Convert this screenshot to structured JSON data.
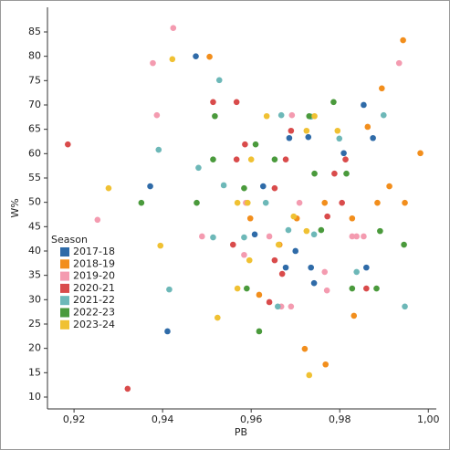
{
  "chart_data": {
    "type": "scatter",
    "x_label": "PB",
    "y_label": "W%",
    "legend_title": "Season",
    "legend_position": "lower left",
    "xlim": [
      0.914,
      1.0018
    ],
    "ylim": [
      7.56,
      90.06
    ],
    "xticks": [
      {
        "value": 0.92,
        "label": "0,92"
      },
      {
        "value": 0.94,
        "label": "0,94"
      },
      {
        "value": 0.96,
        "label": "0,96"
      },
      {
        "value": 0.98,
        "label": "0,98"
      },
      {
        "value": 1.0,
        "label": "1,00"
      }
    ],
    "yticks": [
      10,
      15,
      20,
      25,
      30,
      35,
      40,
      45,
      50,
      55,
      60,
      65,
      70,
      75,
      80,
      85
    ],
    "series": [
      {
        "name": "2017-18",
        "color": "#2f6ba8",
        "x": [
          0.9475,
          0.9372,
          0.9411,
          0.9627,
          0.9608,
          0.9686,
          0.9729,
          0.97,
          0.9678,
          0.9735,
          0.9742,
          0.9809,
          0.9854,
          0.9875,
          0.986
        ],
        "y": [
          80,
          53.3,
          23.5,
          53.3,
          43.4,
          63.2,
          63.4,
          40,
          36.6,
          36.6,
          33.4,
          60.1,
          70,
          63.2,
          36.6
        ]
      },
      {
        "name": "2018-19",
        "color": "#f28e1c",
        "x": [
          0.9506,
          0.9943,
          0.9895,
          0.9863,
          0.9982,
          0.9912,
          0.9766,
          0.9885,
          0.9947,
          0.9598,
          0.9703,
          0.9828,
          0.9664,
          0.9618,
          0.9832,
          0.9721,
          0.9768
        ],
        "y": [
          79.9,
          83.3,
          73.4,
          65.5,
          60.1,
          53.3,
          49.9,
          49.9,
          49.9,
          46.7,
          46.7,
          46.7,
          41.3,
          31,
          26.7,
          19.9,
          16.7
        ]
      },
      {
        "name": "2019-20",
        "color": "#f49bb0",
        "x": [
          0.9424,
          0.9378,
          0.9934,
          0.9387,
          0.9692,
          0.9253,
          0.9489,
          0.9588,
          0.9709,
          0.9641,
          0.9584,
          0.9668,
          0.969,
          0.9766,
          0.9771,
          0.9828,
          0.9838,
          0.9854
        ],
        "y": [
          85.8,
          78.6,
          78.6,
          67.9,
          67.9,
          46.4,
          43,
          49.9,
          49.9,
          43,
          39.2,
          28.6,
          28.6,
          35.7,
          31.9,
          43,
          43,
          43
        ]
      },
      {
        "name": "2020-21",
        "color": "#d94b4b",
        "x": [
          0.9186,
          0.9321,
          0.9514,
          0.9567,
          0.9586,
          0.9567,
          0.9678,
          0.9653,
          0.969,
          0.9559,
          0.9653,
          0.967,
          0.9641,
          0.9772,
          0.9805,
          0.9788,
          0.9813,
          0.986
        ],
        "y": [
          61.9,
          11.7,
          70.6,
          70.6,
          61.9,
          58.8,
          58.8,
          52.9,
          64.7,
          41.3,
          38.1,
          35.3,
          29.5,
          47.1,
          49.9,
          55.9,
          58.8,
          32.3
        ]
      },
      {
        "name": "2021-22",
        "color": "#6db8b8",
        "x": [
          0.9528,
          0.9391,
          0.9481,
          0.9538,
          0.9514,
          0.9415,
          0.9584,
          0.9633,
          0.9668,
          0.9735,
          0.9799,
          0.9899,
          0.9684,
          0.9742,
          0.966,
          0.9838,
          0.9947
        ],
        "y": [
          75.1,
          60.8,
          57.1,
          53.5,
          42.8,
          32.1,
          42.8,
          49.9,
          67.9,
          67.6,
          63.1,
          67.9,
          44.3,
          43.4,
          28.6,
          35.7,
          28.6
        ]
      },
      {
        "name": "2022-23",
        "color": "#4a9a3c",
        "x": [
          0.9352,
          0.9477,
          0.9518,
          0.9514,
          0.9584,
          0.961,
          0.9653,
          0.9731,
          0.9786,
          0.9743,
          0.9815,
          0.9758,
          0.9891,
          0.9945,
          0.959,
          0.9828,
          0.9883,
          0.9618
        ],
        "y": [
          49.9,
          49.9,
          67.7,
          58.8,
          52.9,
          61.9,
          58.8,
          67.7,
          70.6,
          55.9,
          55.9,
          44.3,
          44.1,
          41.3,
          32.3,
          32.3,
          32.3,
          23.5
        ]
      },
      {
        "name": "2023-24",
        "color": "#f0c133",
        "x": [
          0.9422,
          0.9278,
          0.9395,
          0.9635,
          0.9725,
          0.9743,
          0.9795,
          0.96,
          0.9569,
          0.9592,
          0.9696,
          0.9662,
          0.9596,
          0.9569,
          0.9524,
          0.9731,
          0.9725
        ],
        "y": [
          79.4,
          52.9,
          41.1,
          67.7,
          64.7,
          67.7,
          64.7,
          58.8,
          49.9,
          49.9,
          47.1,
          41.3,
          38.1,
          32.3,
          26.3,
          14.5,
          44.1
        ]
      }
    ]
  }
}
